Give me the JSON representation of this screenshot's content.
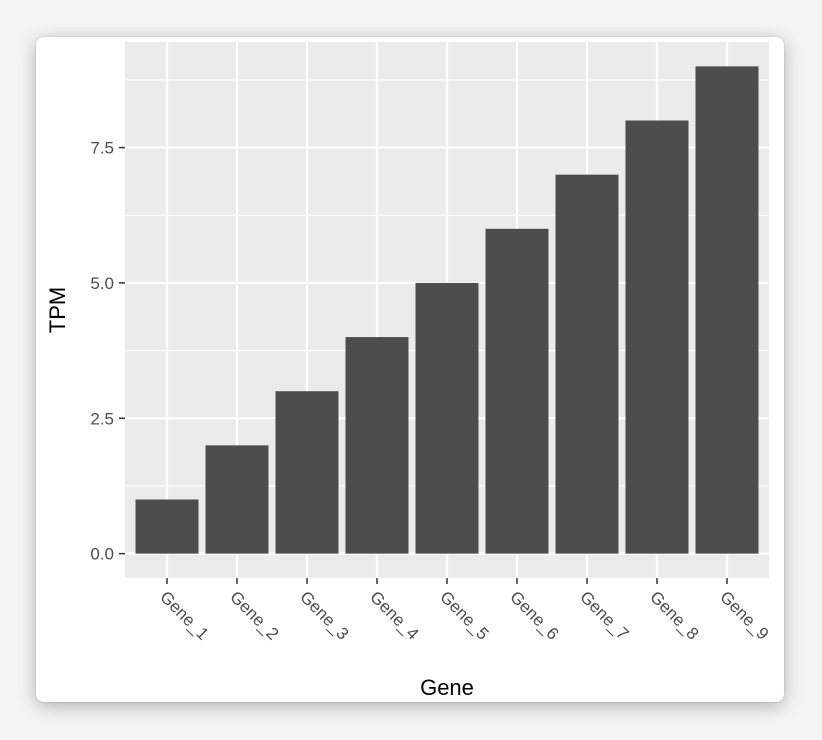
{
  "chart_data": {
    "type": "bar",
    "title": "",
    "xlabel": "Gene",
    "ylabel": "TPM",
    "categories": [
      "Gene_1",
      "Gene_2",
      "Gene_3",
      "Gene_4",
      "Gene_5",
      "Gene_6",
      "Gene_7",
      "Gene_8",
      "Gene_9"
    ],
    "values": [
      1,
      2,
      3,
      4,
      5,
      6,
      7,
      8,
      9
    ],
    "yticks": [
      "0.0",
      "2.5",
      "5.0",
      "7.5"
    ],
    "ytick_values": [
      0,
      2.5,
      5,
      7.5
    ],
    "ylim": [
      -0.45,
      9.45
    ],
    "grid": true,
    "legend": "none",
    "colors": {
      "bar": "#4d4d4d",
      "panel": "#ebebeb",
      "grid": "#ffffff",
      "tick": "#333333"
    }
  }
}
